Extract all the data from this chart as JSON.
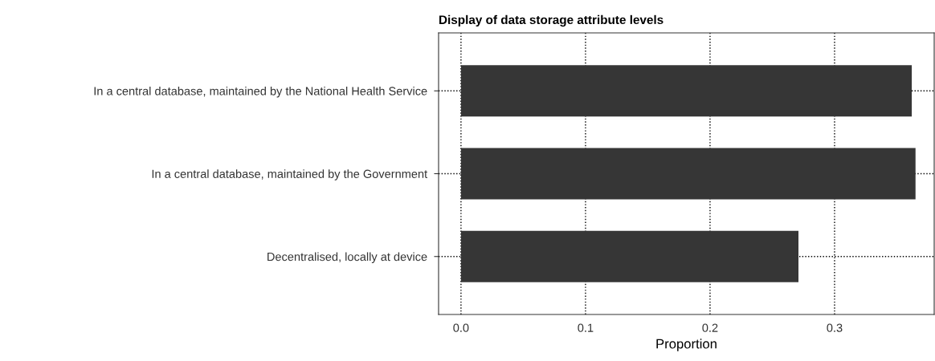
{
  "chart_data": {
    "type": "bar",
    "orientation": "horizontal",
    "title": "Display of data storage attribute levels",
    "xlabel": "Proportion",
    "categories": [
      "In a central database, maintained by the National Health Service",
      "In a central database, maintained by the Government",
      "Decentralised, locally at device"
    ],
    "values": [
      0.362,
      0.365,
      0.271
    ],
    "color": "#363636",
    "xlim": [
      -0.018,
      0.38
    ],
    "xticks": [
      {
        "value": 0.0,
        "label": "0.0"
      },
      0.1,
      0.2,
      0.3
    ],
    "grid": true,
    "line_style": "dotted"
  }
}
